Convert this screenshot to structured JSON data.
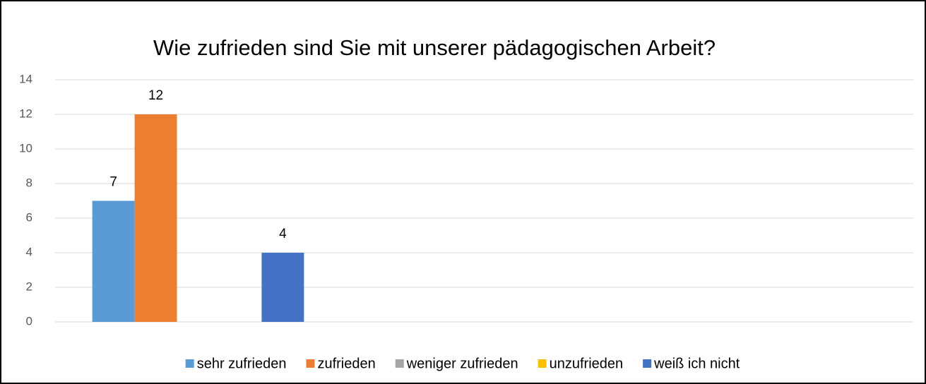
{
  "chart_data": {
    "type": "bar",
    "title": "Wie zufrieden sind Sie mit unserer pädagogischen Arbeit?",
    "categories": [
      null,
      null,
      null
    ],
    "series": [
      {
        "name": "sehr zufrieden",
        "color": "#5b9bd5",
        "values": [
          7,
          null,
          null
        ]
      },
      {
        "name": "zufrieden",
        "color": "#ed7d31",
        "values": [
          12,
          null,
          null
        ]
      },
      {
        "name": "weniger zufrieden",
        "color": "#a5a5a5",
        "values": [
          null,
          null,
          null
        ]
      },
      {
        "name": "unzufrieden",
        "color": "#ffc000",
        "values": [
          null,
          null,
          null
        ]
      },
      {
        "name": "weiß ich nicht",
        "color": "#4472c4",
        "values": [
          4,
          null,
          null
        ]
      }
    ],
    "ylim": [
      0,
      14
    ],
    "yticks": [
      0,
      2,
      4,
      6,
      8,
      10,
      12,
      14
    ],
    "grid": true,
    "legend": "bottom"
  }
}
